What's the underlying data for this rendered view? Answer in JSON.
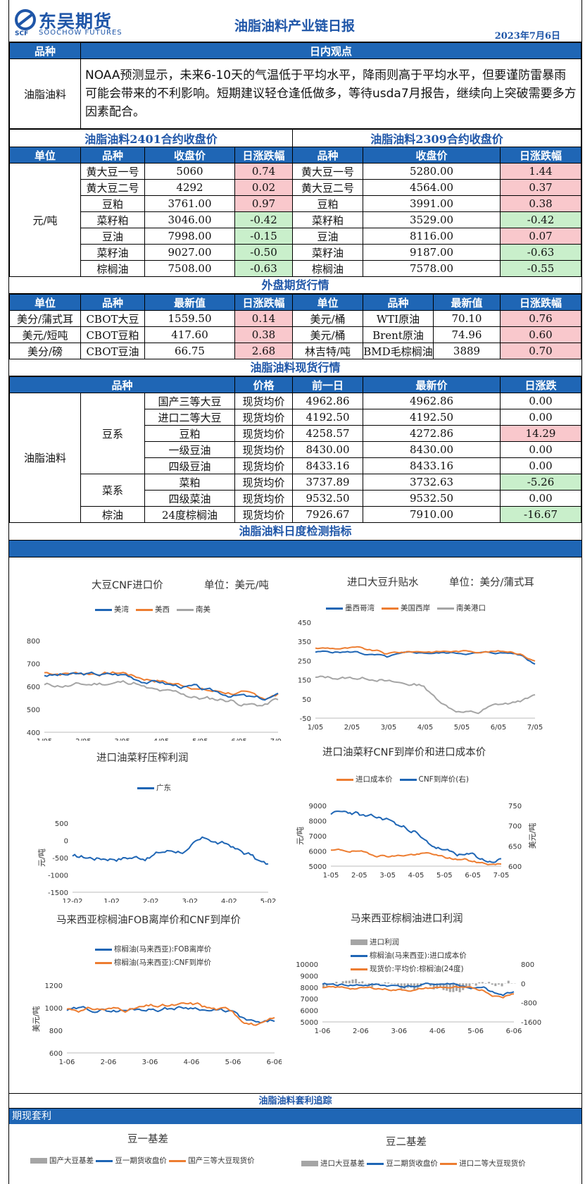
{
  "header": {
    "logo_cn": "东吴期货",
    "logo_en": "SOOCHOW FUTURES",
    "logo_mark": "SCF",
    "title": "油脂油料产业链日报",
    "date": "2023年7月6日"
  },
  "view": {
    "h_variety": "品种",
    "h_view": "日内观点",
    "variety": "油脂油料",
    "text": "NOAA预测显示，未来6-10天的气温低于平均水平，降雨则高于平均水平，但要谨防雷暴雨可能会带来的不利影响。短期建议轻仓逢低做多，等待usda7月报告，继续向上突破需要多方因素配合。"
  },
  "close": {
    "title_left": "油脂油料2401合约收盘价",
    "title_right": "油脂油料2309合约收盘价",
    "headers": [
      "单位",
      "品种",
      "收盘价",
      "日涨跌幅",
      "品种",
      "收盘价",
      "日涨跌幅"
    ],
    "unit": "元/吨",
    "rows": [
      [
        "黄大豆一号",
        "5060",
        "0.74",
        "黄大豆一号",
        "5280.00",
        "1.44"
      ],
      [
        "黄大豆二号",
        "4292",
        "0.02",
        "黄大豆二号",
        "4564.00",
        "0.37"
      ],
      [
        "豆粕",
        "3761.00",
        "0.97",
        "豆粕",
        "3991.00",
        "0.38"
      ],
      [
        "菜籽粕",
        "3046.00",
        "-0.42",
        "菜籽粕",
        "3529.00",
        "-0.42"
      ],
      [
        "豆油",
        "7998.00",
        "-0.15",
        "豆油",
        "8116.00",
        "0.07"
      ],
      [
        "菜籽油",
        "9027.00",
        "-0.50",
        "菜籽油",
        "9187.00",
        "-0.63"
      ],
      [
        "棕榈油",
        "7508.00",
        "-0.63",
        "棕榈油",
        "7578.00",
        "-0.55"
      ]
    ]
  },
  "ext": {
    "title": "外盘期货行情",
    "headers": [
      "单位",
      "品种",
      "最新值",
      "日涨跌幅",
      "单位",
      "品种",
      "最新值",
      "日涨跌幅"
    ],
    "rows": [
      [
        "美分/蒲式耳",
        "CBOT大豆",
        "1559.50",
        "0.14",
        "美元/桶",
        "WTI原油",
        "70.10",
        "0.76"
      ],
      [
        "美元/短吨",
        "CBOT豆粕",
        "417.60",
        "0.38",
        "美元/桶",
        "Brent原油",
        "74.96",
        "0.60"
      ],
      [
        "美分/磅",
        "CBOT豆油",
        "66.75",
        "2.68",
        "林吉特/吨",
        "BMD毛棕榈油",
        "3889",
        "0.70"
      ]
    ]
  },
  "spot": {
    "title": "油脂油料现货行情",
    "headers": [
      "品种",
      "价格",
      "前一日",
      "最新价",
      "日涨跌"
    ],
    "group": "油脂油料",
    "sub1": "豆系",
    "sub2": "菜系",
    "sub3": "棕油",
    "rows": [
      [
        "国产三等大豆",
        "现货均价",
        "4962.86",
        "4962.86",
        "0.00"
      ],
      [
        "进口二等大豆",
        "现货均价",
        "4192.50",
        "4192.50",
        "0.00"
      ],
      [
        "豆粕",
        "现货均价",
        "4258.57",
        "4272.86",
        "14.29"
      ],
      [
        "一级豆油",
        "现货均价",
        "8430.00",
        "8430.00",
        "0.00"
      ],
      [
        "四级豆油",
        "现货均价",
        "8433.16",
        "8433.16",
        "0.00"
      ],
      [
        "菜粕",
        "现货均价",
        "3737.89",
        "3732.63",
        "-5.26"
      ],
      [
        "四级菜油",
        "现货均价",
        "9532.50",
        "9532.50",
        "0.00"
      ],
      [
        "24度棕榈油",
        "现货均价",
        "7926.67",
        "7910.00",
        "-16.67"
      ]
    ]
  },
  "monitor": {
    "title": "油脂油料日度检测指标"
  },
  "charts": [
    {
      "title": "大豆CNF进口价",
      "unit": "单位：美元/吨",
      "legend": [
        "美湾",
        "美西",
        "南美"
      ],
      "yticks": [
        "800",
        "700",
        "600",
        "500",
        "400"
      ],
      "xticks": [
        "1/05",
        "2/05",
        "3/05",
        "4/05",
        "5/05",
        "6/05",
        "7/05"
      ]
    },
    {
      "title": "进口大豆升贴水",
      "unit": "单位：美分/蒲式耳",
      "legend": [
        "墨西哥湾",
        "美国西岸",
        "南美港口"
      ],
      "yticks": [
        "450",
        "350",
        "250",
        "150",
        "50",
        "-50"
      ],
      "xticks": [
        "1/05",
        "2/05",
        "3/05",
        "4/05",
        "5/05",
        "6/05",
        "7/05"
      ]
    },
    {
      "title": "进口油菜籽压榨利润",
      "legend": [
        "广东"
      ],
      "ylabel": "元/吨",
      "yticks": [
        "500",
        "0",
        "-500",
        "-1000",
        "-1500"
      ],
      "xticks": [
        "12-02",
        "1-02",
        "2-02",
        "3-02",
        "4-02",
        "5-02"
      ]
    },
    {
      "title": "进口油菜籽CNF到岸价和进口成本价",
      "legend": [
        "进口成本价",
        "CNF到岸价(右)"
      ],
      "ylabel": "元/吨",
      "ylabel2": "美元/吨",
      "yticks": [
        "9000",
        "8000",
        "7000",
        "6000",
        "5000"
      ],
      "yticks2": [
        "750",
        "700",
        "650",
        "600"
      ],
      "xticks": [
        "1-05",
        "2-05",
        "3-05",
        "4-05",
        "5-05",
        "6-05",
        "7-05"
      ]
    },
    {
      "title": "马来西亚棕榈油FOB离岸价和CNF到岸价",
      "legend": [
        "棕榈油(马来西亚):FOB离岸价",
        "棕榈油(马来西亚):CNF到岸价"
      ],
      "ylabel": "美元/吨",
      "yticks": [
        "1200",
        "1000",
        "800",
        "600"
      ],
      "xticks": [
        "1-06",
        "2-06",
        "3-06",
        "4-06",
        "5-06",
        "6-06"
      ]
    },
    {
      "title": "马来西亚棕榈油进口利润",
      "legend": [
        "进口利润",
        "棕榈油(马来西亚):进口成本价",
        "现货价:平均价:棕榈油(24度)"
      ],
      "yticks": [
        "10000",
        "9000",
        "8000",
        "7000",
        "6000",
        "5000"
      ],
      "yticks2": [
        "800",
        "0",
        "-800",
        "-1600"
      ],
      "xticks": [
        "1-06",
        "2-06",
        "3-06",
        "4-06",
        "5-06",
        "6-06"
      ]
    }
  ],
  "arb": {
    "title": "油脂油料套利追踪",
    "sub": "期现套利",
    "c1_title": "豆一基差",
    "c1_legend": [
      "国产大豆基差",
      "豆一期货收盘价",
      "国产三等大豆现货价"
    ],
    "c2_title": "豆二基差",
    "c2_legend": [
      "进口大豆基差",
      "豆二期货收盘价",
      "进口二等大豆现货价"
    ]
  },
  "colors": {
    "blue": "#1f66b5",
    "orange": "#ed7d31",
    "gray": "#a5a5a5",
    "pos": "#f9c8cc",
    "neg": "#c9efcb"
  }
}
